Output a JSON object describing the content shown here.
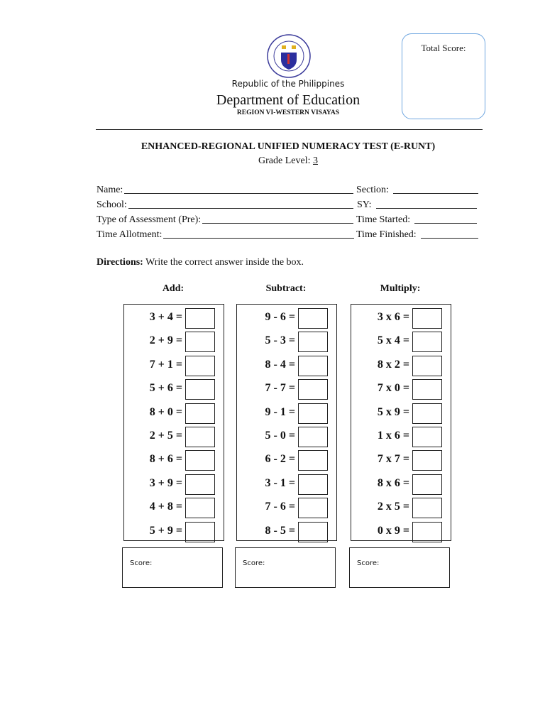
{
  "header": {
    "republic": "Republic of the Philippines",
    "department": "Department of Education",
    "region": "REGION VI-WESTERN VISAYAS",
    "logo_text": "KAGAWARAN NG EDUKASYON · REPUBLIKA NG PILIPINAS"
  },
  "total_score_label": "Total Score:",
  "title": "ENHANCED-REGIONAL UNIFIED NUMERACY TEST (E-RUNT)",
  "grade_label": "Grade Level: ",
  "grade_value": "3",
  "fields": {
    "name": "Name:",
    "section": "Section:",
    "school": "School:",
    "sy": "SY:",
    "type": "Type of Assessment (Pre):",
    "time_started": "Time Started:",
    "time_allotment": "Time Allotment:",
    "time_finished": "Time Finished:"
  },
  "directions": {
    "label": "Directions:",
    "text": " Write the correct answer inside the box."
  },
  "columns": [
    {
      "heading": "Add:",
      "items": [
        "3 + 4 =",
        "2 + 9 =",
        "7 + 1 =",
        "5 + 6 =",
        "8 + 0 =",
        "2 + 5 =",
        "8 + 6 =",
        "3 + 9 =",
        "4 + 8 =",
        "5 + 9 ="
      ],
      "score_label": "Score:"
    },
    {
      "heading": "Subtract:",
      "items": [
        "9 - 6 =",
        "5 - 3 =",
        "8 - 4 =",
        "7 - 7 =",
        "9 - 1 =",
        "5 - 0 =",
        "6 - 2 =",
        "3 - 1 =",
        "7 - 6 =",
        "8 - 5 ="
      ],
      "score_label": "Score:"
    },
    {
      "heading": "Multiply:",
      "items": [
        "3 x 6 =",
        "5 x 4 =",
        "8 x 2 =",
        "7 x 0 =",
        "5 x 9 =",
        "1 x 6 =",
        "7 x 7 =",
        "8 x 6 =",
        "2 x 5 =",
        "0 x 9 ="
      ],
      "score_label": "Score:"
    }
  ]
}
